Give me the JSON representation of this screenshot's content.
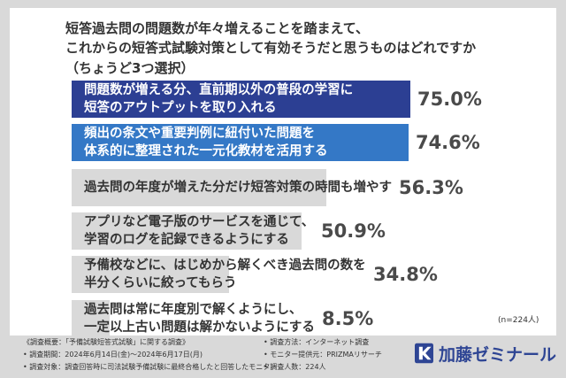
{
  "question": {
    "line1": "短答過去問の問題数が年々増えることを踏まえて、",
    "line2": "これからの短答式試験対策として有効そうだと思うものはどれですか",
    "line3": "（ちょうど3つ選択）"
  },
  "sample_note": "(n=224人)",
  "chart_data": {
    "type": "bar",
    "orientation": "horizontal",
    "categories": [
      "問題数が増える分、直前期以外の普段の学習に\n短答のアウトプットを取り入れる",
      "頻出の条文や重要判例に紐付いた問題を\n体系的に整理された一元化教材を活用する",
      "過去問の年度が増えた分だけ短答対策の時間も増やす",
      "アプリなど電子版のサービスを通じて、\n学習のログを記録できるようにする",
      "予備校などに、はじめから解くべき過去問の数を\n半分くらいに絞ってもらう",
      "過去問は常に年度別で解くようにし、\n一定以上古い問題は解かないようにする"
    ],
    "values": [
      75.0,
      74.6,
      56.3,
      50.9,
      34.8,
      8.5
    ],
    "value_labels": [
      "75.0%",
      "74.6%",
      "56.3%",
      "50.9%",
      "34.8%",
      "8.5%"
    ],
    "xlim": [
      0,
      75
    ],
    "colors": {
      "top1": "#2c3f93",
      "top2": "#3478c6",
      "rest": "#d9d9d9",
      "label_on_dark": "#ffffff",
      "label_on_light": "#333333",
      "value_text": "#4a4a4a"
    }
  },
  "footer": {
    "survey_name": "《調査概要：「予備試験短答式試験」に関する調査》",
    "period": "• 調査期間：2024年6月14日(金)～2024年6月17日(月)",
    "target": "• 調査対象：調査回答時に司法試験予備試験に最終合格したと回答したモニター",
    "method": "• 調査方法：インターネット調査",
    "monitor": "• モニター提供元：PRIZMAリサーチ",
    "count": "• 調査人数：224人"
  },
  "logo": {
    "text": "加藤ゼミナール",
    "color": "#2e4594",
    "icon": "kato-seminar-logo-mark"
  }
}
